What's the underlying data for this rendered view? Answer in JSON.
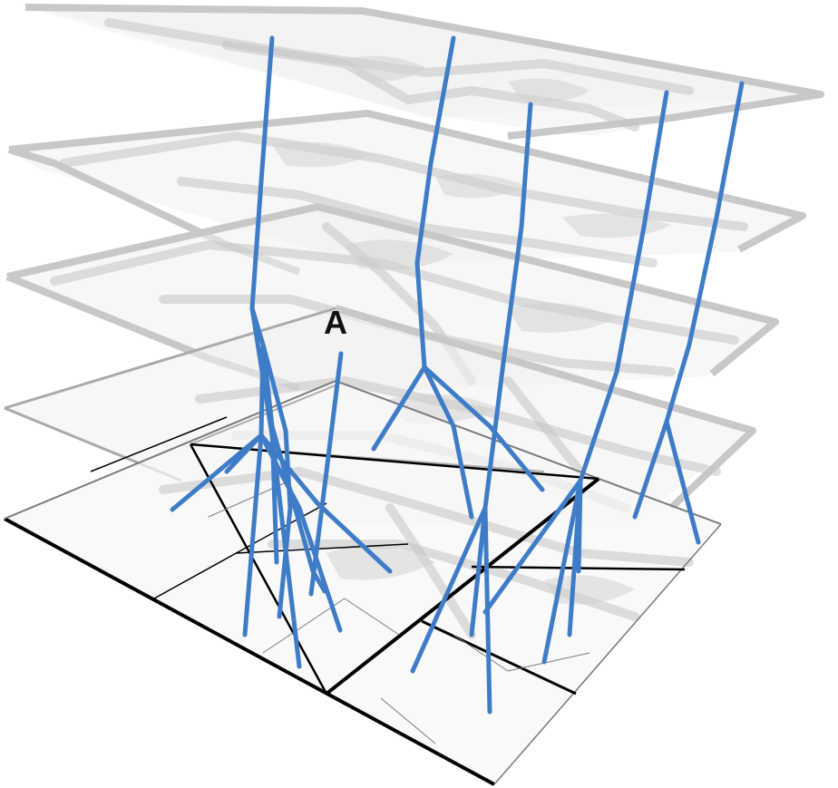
{
  "figure": {
    "annotation_label": "A",
    "colors": {
      "background": "#ffffff",
      "layer_fill": "#f1f1f1",
      "layer_edge": "#c8c8c8",
      "grid_black": "#000000",
      "root_blue": "#3f7cc8"
    },
    "layers": [
      "top",
      "upper",
      "middle",
      "lower",
      "base"
    ],
    "root_systems": [
      "root-1",
      "root-2",
      "root-3",
      "root-4",
      "root-5",
      "root-A"
    ]
  }
}
